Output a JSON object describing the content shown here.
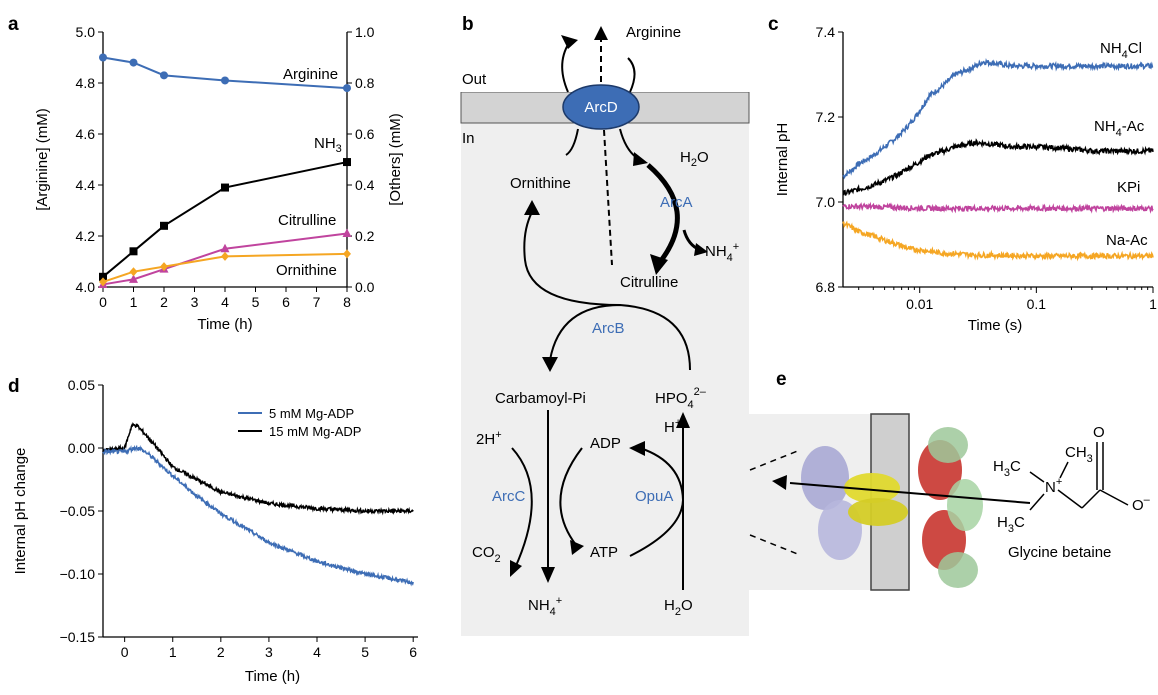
{
  "panel_labels": {
    "a": "a",
    "b": "b",
    "c": "c",
    "d": "d",
    "e": "e"
  },
  "colors": {
    "blue": "#3d6db5",
    "black": "#000000",
    "magenta": "#c0449e",
    "orange": "#f5a623",
    "grey": "#d3d3d3",
    "light": "#efefef"
  },
  "chart_data": [
    {
      "panel": "a",
      "type": "line",
      "xlabel": "Time (h)",
      "ylabel": "[Arginine] (mM)",
      "y2label": "[Others] (mM)",
      "xlim": [
        0,
        8
      ],
      "ylim": [
        4.0,
        5.0
      ],
      "y2lim": [
        0,
        1.0
      ],
      "xticks": [
        "0",
        "1",
        "2",
        "3",
        "4",
        "5",
        "6",
        "7",
        "8"
      ],
      "yticks": [
        "4.0",
        "4.2",
        "4.4",
        "4.6",
        "4.8",
        "5.0"
      ],
      "y2ticks": [
        "0.0",
        "0.2",
        "0.4",
        "0.6",
        "0.8",
        "1.0"
      ],
      "series": [
        {
          "name": "Arginine",
          "axis": "left",
          "color": "#3d6db5",
          "marker": "circle",
          "x": [
            0,
            1,
            2,
            4,
            8
          ],
          "values": [
            4.9,
            4.88,
            4.83,
            4.81,
            4.78
          ]
        },
        {
          "name": "NH3",
          "axis": "right",
          "color": "#000000",
          "marker": "square",
          "x": [
            0,
            1,
            2,
            4,
            8
          ],
          "values": [
            0.04,
            0.14,
            0.24,
            0.39,
            0.49
          ]
        },
        {
          "name": "Citrulline",
          "axis": "right",
          "color": "#c0449e",
          "marker": "triangle",
          "x": [
            0,
            1,
            2,
            4,
            8
          ],
          "values": [
            0.01,
            0.03,
            0.07,
            0.15,
            0.21
          ]
        },
        {
          "name": "Ornithine",
          "axis": "right",
          "color": "#f5a623",
          "marker": "diamond",
          "x": [
            0,
            1,
            2,
            4,
            8
          ],
          "values": [
            0.02,
            0.06,
            0.08,
            0.12,
            0.13
          ]
        }
      ]
    },
    {
      "panel": "c",
      "type": "line",
      "xscale": "log",
      "xlabel": "Time (s)",
      "ylabel": "Internal pH",
      "xlim": [
        0.0022,
        1
      ],
      "ylim": [
        6.8,
        7.4
      ],
      "xticks": [
        {
          "v": 0.01,
          "label": "0.01"
        },
        {
          "v": 0.1,
          "label": "0.1"
        },
        {
          "v": 1,
          "label": "1"
        }
      ],
      "yticks": [
        "6.8",
        "7.0",
        "7.2",
        "7.4"
      ],
      "series": [
        {
          "name": "NH4Cl",
          "color": "#3d6db5",
          "x": [
            0.0022,
            0.003,
            0.005,
            0.008,
            0.012,
            0.02,
            0.035,
            0.06,
            0.1,
            0.3,
            1
          ],
          "values": [
            7.06,
            7.09,
            7.13,
            7.18,
            7.25,
            7.3,
            7.33,
            7.32,
            7.32,
            7.32,
            7.32
          ]
        },
        {
          "name": "NH4-Ac",
          "color": "#000000",
          "x": [
            0.0022,
            0.003,
            0.005,
            0.008,
            0.012,
            0.02,
            0.03,
            0.06,
            0.1,
            0.3,
            1
          ],
          "values": [
            7.02,
            7.03,
            7.05,
            7.08,
            7.11,
            7.13,
            7.14,
            7.13,
            7.13,
            7.12,
            7.12
          ]
        },
        {
          "name": "KPi",
          "color": "#c0449e",
          "x": [
            0.0022,
            0.01,
            0.1,
            1
          ],
          "values": [
            6.99,
            6.985,
            6.985,
            6.985
          ]
        },
        {
          "name": "Na-Ac",
          "color": "#f5a623",
          "x": [
            0.0022,
            0.003,
            0.005,
            0.008,
            0.015,
            0.03,
            0.1,
            1
          ],
          "values": [
            6.95,
            6.93,
            6.91,
            6.89,
            6.88,
            6.875,
            6.873,
            6.873
          ]
        }
      ],
      "labels": [
        {
          "text": "NH",
          "sub": "4",
          "tail": "Cl",
          "series": "NH4Cl"
        },
        {
          "text": "NH",
          "sub": "4",
          "tail": "-Ac",
          "series": "NH4-Ac"
        },
        {
          "text": "KPi",
          "sub": "",
          "tail": "",
          "series": "KPi"
        },
        {
          "text": "Na-Ac",
          "sub": "",
          "tail": "",
          "series": "Na-Ac"
        }
      ]
    },
    {
      "panel": "d",
      "type": "line",
      "xlabel": "Time (h)",
      "ylabel": "Internal pH change",
      "xlim": [
        -0.45,
        6.1
      ],
      "ylim": [
        -0.15,
        0.05
      ],
      "xticks": [
        "0",
        "1",
        "2",
        "3",
        "4",
        "5",
        "6"
      ],
      "yticks": [
        "0.05",
        "0.00",
        "−0.05",
        "−0.10",
        "−0.15"
      ],
      "legend_position": "top-right",
      "series": [
        {
          "name": "5 mM Mg-ADP",
          "color": "#3d6db5",
          "x": [
            -0.45,
            0,
            0.2,
            0.3,
            0.5,
            1,
            1.5,
            2,
            3,
            4,
            5,
            6
          ],
          "values": [
            -0.003,
            -0.003,
            0.0,
            0.0,
            -0.005,
            -0.022,
            -0.038,
            -0.052,
            -0.075,
            -0.09,
            -0.1,
            -0.107
          ]
        },
        {
          "name": "15 mM Mg-ADP",
          "color": "#000000",
          "x": [
            -0.45,
            0,
            0.15,
            0.25,
            0.5,
            1,
            2,
            3,
            4,
            5,
            6
          ],
          "values": [
            -0.002,
            0.0,
            0.018,
            0.018,
            0.008,
            -0.015,
            -0.035,
            -0.044,
            -0.048,
            -0.05,
            -0.05
          ]
        }
      ]
    }
  ],
  "panel_a_labels": {
    "arginine": "Arginine",
    "nh3": "NH",
    "nh3_sub": "3",
    "citrulline": "Citrulline",
    "ornithine": "Ornithine"
  },
  "panel_b": {
    "out": "Out",
    "in": "In",
    "arcd": "ArcD",
    "arginine": "Arginine",
    "h2o": "H",
    "h2o_sub": "2",
    "h2o_tail": "O",
    "arca": "ArcA",
    "nh4": "NH",
    "nh4_sub": "4",
    "nh4_sup": "+",
    "ornithine": "Ornithine",
    "citrulline": "Citrulline",
    "arcb": "ArcB",
    "carbamoyl": "Carbamoyl-Pi",
    "hpo4": "HPO",
    "hpo4_sub": "4",
    "hpo4_sup": "2–",
    "hplus": "H",
    "hplus_sup": "+",
    "two_h": "2H",
    "two_h_sup": "+",
    "adp": "ADP",
    "arcc": "ArcC",
    "opua": "OpuA",
    "co2": "CO",
    "co2_sub": "2",
    "atp": "ATP",
    "nh4_bottom": "NH",
    "h2o_bottom": "H"
  },
  "panel_e": {
    "molecule": "Glycine betaine",
    "h3c": "H",
    "c3": "3",
    "n": "N",
    "nplus": "+",
    "ch3": "CH",
    "ominus": "O",
    "minus": "–",
    "o": "O"
  }
}
